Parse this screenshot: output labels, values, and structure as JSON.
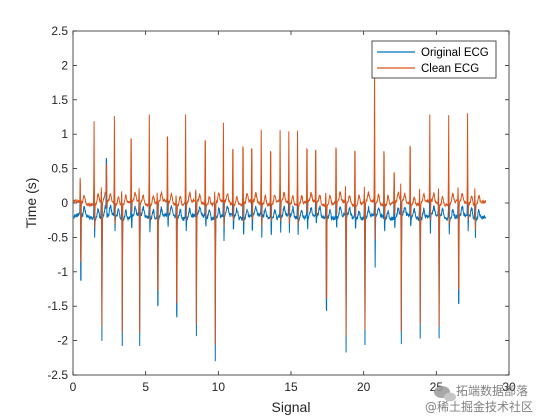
{
  "chart_data": {
    "type": "line",
    "xlabel": "Signal",
    "ylabel": "Time (s)",
    "xlim": [
      0,
      30
    ],
    "ylim": [
      -2.5,
      2.5
    ],
    "xticks": [
      0,
      5,
      10,
      15,
      20,
      25,
      30
    ],
    "xtick_labels": [
      "0",
      "5",
      "10",
      "15",
      "20",
      "25",
      "30"
    ],
    "yticks": [
      -2.5,
      -2,
      -1.5,
      -1,
      -0.5,
      0,
      0.5,
      1,
      1.5,
      2,
      2.5
    ],
    "ytick_labels": [
      "-2.5",
      "-2",
      "-1.5",
      "-1",
      "-0.5",
      "0",
      "0.5",
      "1",
      "1.5",
      "2",
      "2.5"
    ],
    "grid": false,
    "legend_position": "top-right",
    "beats": [
      {
        "t": 0.5,
        "peak_orig": 0.2,
        "peak_clean": 0.45,
        "trough_orig": -1.5,
        "trough_clean": -1.2
      },
      {
        "t": 1.45,
        "peak_orig": 0.35,
        "peak_clean": 1.2,
        "trough_orig": -0.5,
        "trough_clean": -0.35
      },
      {
        "t": 1.95,
        "peak_orig": 0.2,
        "peak_clean": 0.2,
        "trough_orig": -2.02,
        "trough_clean": -1.8
      },
      {
        "t": 2.3,
        "peak_orig": 0.85,
        "peak_clean": 0.65,
        "trough_orig": -0.3,
        "trough_clean": -0.15
      },
      {
        "t": 2.85,
        "peak_orig": 0.3,
        "peak_clean": 1.28,
        "trough_orig": -0.45,
        "trough_clean": -0.3
      },
      {
        "t": 3.35,
        "peak_orig": 0.15,
        "peak_clean": 0.2,
        "trough_orig": -2.08,
        "trough_clean": -1.85
      },
      {
        "t": 4.0,
        "peak_orig": 0.3,
        "peak_clean": 1.25,
        "trough_orig": -0.4,
        "trough_clean": -0.25
      },
      {
        "t": 4.55,
        "peak_orig": 0.15,
        "peak_clean": 0.2,
        "trough_orig": -2.12,
        "trough_clean": -1.9
      },
      {
        "t": 5.25,
        "peak_orig": 0.35,
        "peak_clean": 1.3,
        "trough_orig": -0.4,
        "trough_clean": -0.25
      },
      {
        "t": 5.8,
        "peak_orig": 0.15,
        "peak_clean": 0.2,
        "trough_orig": -1.92,
        "trough_clean": -1.75
      },
      {
        "t": 6.5,
        "peak_orig": 0.3,
        "peak_clean": 1.3,
        "trough_orig": -0.4,
        "trough_clean": -0.25
      },
      {
        "t": 7.1,
        "peak_orig": 0.15,
        "peak_clean": 0.2,
        "trough_orig": -2.18,
        "trough_clean": -1.95
      },
      {
        "t": 7.75,
        "peak_orig": 0.3,
        "peak_clean": 1.3,
        "trough_orig": -0.4,
        "trough_clean": -0.25
      },
      {
        "t": 8.45,
        "peak_orig": 0.15,
        "peak_clean": 0.2,
        "trough_orig": -1.95,
        "trough_clean": -1.78
      },
      {
        "t": 9.1,
        "peak_orig": 0.3,
        "peak_clean": 1.25,
        "trough_orig": -0.4,
        "trough_clean": -0.25
      },
      {
        "t": 9.75,
        "peak_orig": 0.15,
        "peak_clean": 0.2,
        "trough_orig": -2.25,
        "trough_clean": -2.05
      },
      {
        "t": 10.35,
        "peak_orig": 0.35,
        "peak_clean": 1.15,
        "trough_orig": -0.6,
        "trough_clean": -0.4
      },
      {
        "t": 11.0,
        "peak_orig": 0.3,
        "peak_clean": 1.1,
        "trough_orig": -0.5,
        "trough_clean": -0.35
      },
      {
        "t": 11.7,
        "peak_orig": 0.25,
        "peak_clean": 1.12,
        "trough_orig": -0.5,
        "trough_clean": -0.35
      },
      {
        "t": 12.3,
        "peak_orig": 0.25,
        "peak_clean": 1.05,
        "trough_orig": -0.5,
        "trough_clean": -0.35
      },
      {
        "t": 12.95,
        "peak_orig": 0.25,
        "peak_clean": 1.08,
        "trough_orig": -0.5,
        "trough_clean": -0.35
      },
      {
        "t": 13.6,
        "peak_orig": 0.25,
        "peak_clean": 1.05,
        "trough_orig": -0.5,
        "trough_clean": -0.35
      },
      {
        "t": 14.25,
        "peak_orig": 0.25,
        "peak_clean": 1.05,
        "trough_orig": -0.45,
        "trough_clean": -0.3
      },
      {
        "t": 14.85,
        "peak_orig": 0.25,
        "peak_clean": 1.05,
        "trough_orig": -0.45,
        "trough_clean": -0.3
      },
      {
        "t": 15.45,
        "peak_orig": 0.25,
        "peak_clean": 1.08,
        "trough_orig": -0.45,
        "trough_clean": -0.3
      },
      {
        "t": 16.1,
        "peak_orig": 0.25,
        "peak_clean": 1.05,
        "trough_orig": -0.4,
        "trough_clean": -0.25
      },
      {
        "t": 16.7,
        "peak_orig": 0.25,
        "peak_clean": 1.02,
        "trough_orig": -0.4,
        "trough_clean": -0.25
      },
      {
        "t": 17.4,
        "peak_orig": 0.15,
        "peak_clean": 0.25,
        "trough_orig": -2.05,
        "trough_clean": -1.85
      },
      {
        "t": 18.1,
        "peak_orig": 0.25,
        "peak_clean": 1.05,
        "trough_orig": -0.4,
        "trough_clean": -0.25
      },
      {
        "t": 18.75,
        "peak_orig": 0.15,
        "peak_clean": 0.25,
        "trough_orig": -2.18,
        "trough_clean": -1.95
      },
      {
        "t": 19.4,
        "peak_orig": 0.25,
        "peak_clean": 1.05,
        "trough_orig": -0.4,
        "trough_clean": -0.25
      },
      {
        "t": 20.05,
        "peak_orig": 0.15,
        "peak_clean": 0.25,
        "trough_orig": -2.05,
        "trough_clean": -1.85
      },
      {
        "t": 20.75,
        "peak_orig": 0.2,
        "peak_clean": 2.1,
        "trough_orig": -1.0,
        "trough_clean": -0.55
      },
      {
        "t": 21.4,
        "peak_orig": 0.3,
        "peak_clean": 1.05,
        "trough_orig": -0.45,
        "trough_clean": -0.3
      },
      {
        "t": 22.1,
        "peak_orig": 0.5,
        "peak_clean": 0.6,
        "trough_orig": -0.4,
        "trough_clean": -0.25
      },
      {
        "t": 22.55,
        "peak_orig": 0.15,
        "peak_clean": 0.25,
        "trough_orig": -2.08,
        "trough_clean": -1.88
      },
      {
        "t": 23.2,
        "peak_orig": 0.3,
        "peak_clean": 1.15,
        "trough_orig": -0.4,
        "trough_clean": -0.25
      },
      {
        "t": 23.85,
        "peak_orig": 0.15,
        "peak_clean": 0.25,
        "trough_orig": -1.92,
        "trough_clean": -1.75
      },
      {
        "t": 24.55,
        "peak_orig": 0.3,
        "peak_clean": 1.25,
        "trough_orig": -0.45,
        "trough_clean": -0.3
      },
      {
        "t": 25.15,
        "peak_orig": 0.15,
        "peak_clean": 0.25,
        "trough_orig": -1.98,
        "trough_clean": -1.8
      },
      {
        "t": 25.85,
        "peak_orig": 0.3,
        "peak_clean": 1.3,
        "trough_orig": -0.45,
        "trough_clean": -0.3
      },
      {
        "t": 26.5,
        "peak_orig": 0.15,
        "peak_clean": 0.25,
        "trough_orig": -1.92,
        "trough_clean": -1.75
      },
      {
        "t": 27.15,
        "peak_orig": 0.3,
        "peak_clean": 1.3,
        "trough_orig": -0.4,
        "trough_clean": -0.25
      },
      {
        "t": 27.65,
        "peak_orig": 0.15,
        "peak_clean": 0.25,
        "trough_orig": -0.5,
        "trough_clean": -0.35
      }
    ],
    "series": [
      {
        "name": "Original ECG",
        "color": "#0072BD",
        "baseline": -0.2,
        "noise": 0.06
      },
      {
        "name": "Clean ECG",
        "color": "#D95319",
        "baseline": 0.0,
        "noise": 0.04
      }
    ]
  },
  "watermark": {
    "line1": "拓端数据部落",
    "line2": "@稀土掘金技术社区",
    "icon": "wechat-icon"
  }
}
